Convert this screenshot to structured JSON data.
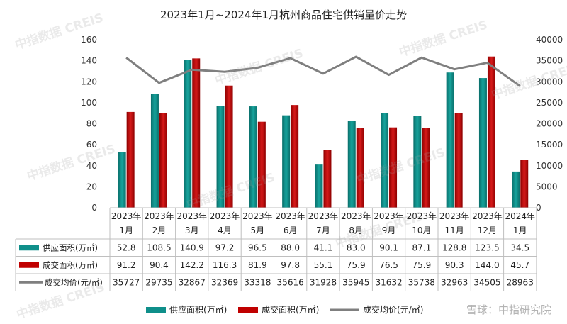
{
  "chart_data": {
    "type": "bar",
    "title": "2023年1月~2024年1月杭州商品住宅供销量价走势",
    "categories": [
      [
        "2023年",
        "1月"
      ],
      [
        "2023年",
        "2月"
      ],
      [
        "2023年",
        "3月"
      ],
      [
        "2023年",
        "4月"
      ],
      [
        "2023年",
        "5月"
      ],
      [
        "2023年",
        "6月"
      ],
      [
        "2023年",
        "7月"
      ],
      [
        "2023年",
        "8月"
      ],
      [
        "2023年",
        "9月"
      ],
      [
        "2023年",
        "10月"
      ],
      [
        "2023年",
        "11月"
      ],
      [
        "2023年",
        "12月"
      ],
      [
        "2024年",
        "1月"
      ]
    ],
    "left_axis": {
      "ylim": [
        0,
        160
      ],
      "ticks": [
        0,
        20,
        40,
        60,
        80,
        100,
        120,
        140,
        160
      ]
    },
    "right_axis": {
      "ylim": [
        0,
        40000
      ],
      "ticks": [
        0,
        5000,
        10000,
        15000,
        20000,
        25000,
        30000,
        35000,
        40000
      ]
    },
    "series": [
      {
        "name": "供应面积(万㎡)",
        "type": "bar",
        "axis": "left",
        "color": "#0f8f8a",
        "values": [
          52.8,
          108.5,
          140.9,
          97.2,
          96.5,
          88.0,
          41.1,
          83.0,
          90.1,
          87.1,
          128.8,
          123.5,
          34.5
        ],
        "labels": [
          "52.8",
          "108.5",
          "140.9",
          "97.2",
          "96.5",
          "88.0",
          "41.1",
          "83.0",
          "90.1",
          "87.1",
          "128.8",
          "123.5",
          "34.5"
        ]
      },
      {
        "name": "成交面积(万㎡)",
        "type": "bar",
        "axis": "left",
        "color": "#c00000",
        "values": [
          91.2,
          90.4,
          142.2,
          116.3,
          81.9,
          97.8,
          55.1,
          75.9,
          76.5,
          75.9,
          90.3,
          144.0,
          45.7
        ],
        "labels": [
          "91.2",
          "90.4",
          "142.2",
          "116.3",
          "81.9",
          "97.8",
          "55.1",
          "75.9",
          "76.5",
          "75.9",
          "90.3",
          "144.0",
          "45.7"
        ]
      },
      {
        "name": "成交均价(元/㎡)",
        "type": "line",
        "axis": "right",
        "color": "#7f7f7f",
        "values": [
          35727,
          29735,
          32867,
          32369,
          33318,
          35616,
          31928,
          35945,
          31632,
          35738,
          32963,
          34505,
          28963
        ],
        "labels": [
          "35727",
          "29735",
          "32867",
          "32369",
          "33318",
          "35616",
          "31928",
          "35945",
          "31632",
          "35738",
          "32963",
          "34505",
          "28963"
        ]
      }
    ],
    "legend": [
      "供应面积(万㎡)",
      "成交面积(万㎡)",
      "成交均价(元/㎡)"
    ],
    "legend_position": "bottom",
    "grid": false
  },
  "watermarks": {
    "text": "中指数据 CREIS",
    "footer": "雪球：中指研究院"
  }
}
